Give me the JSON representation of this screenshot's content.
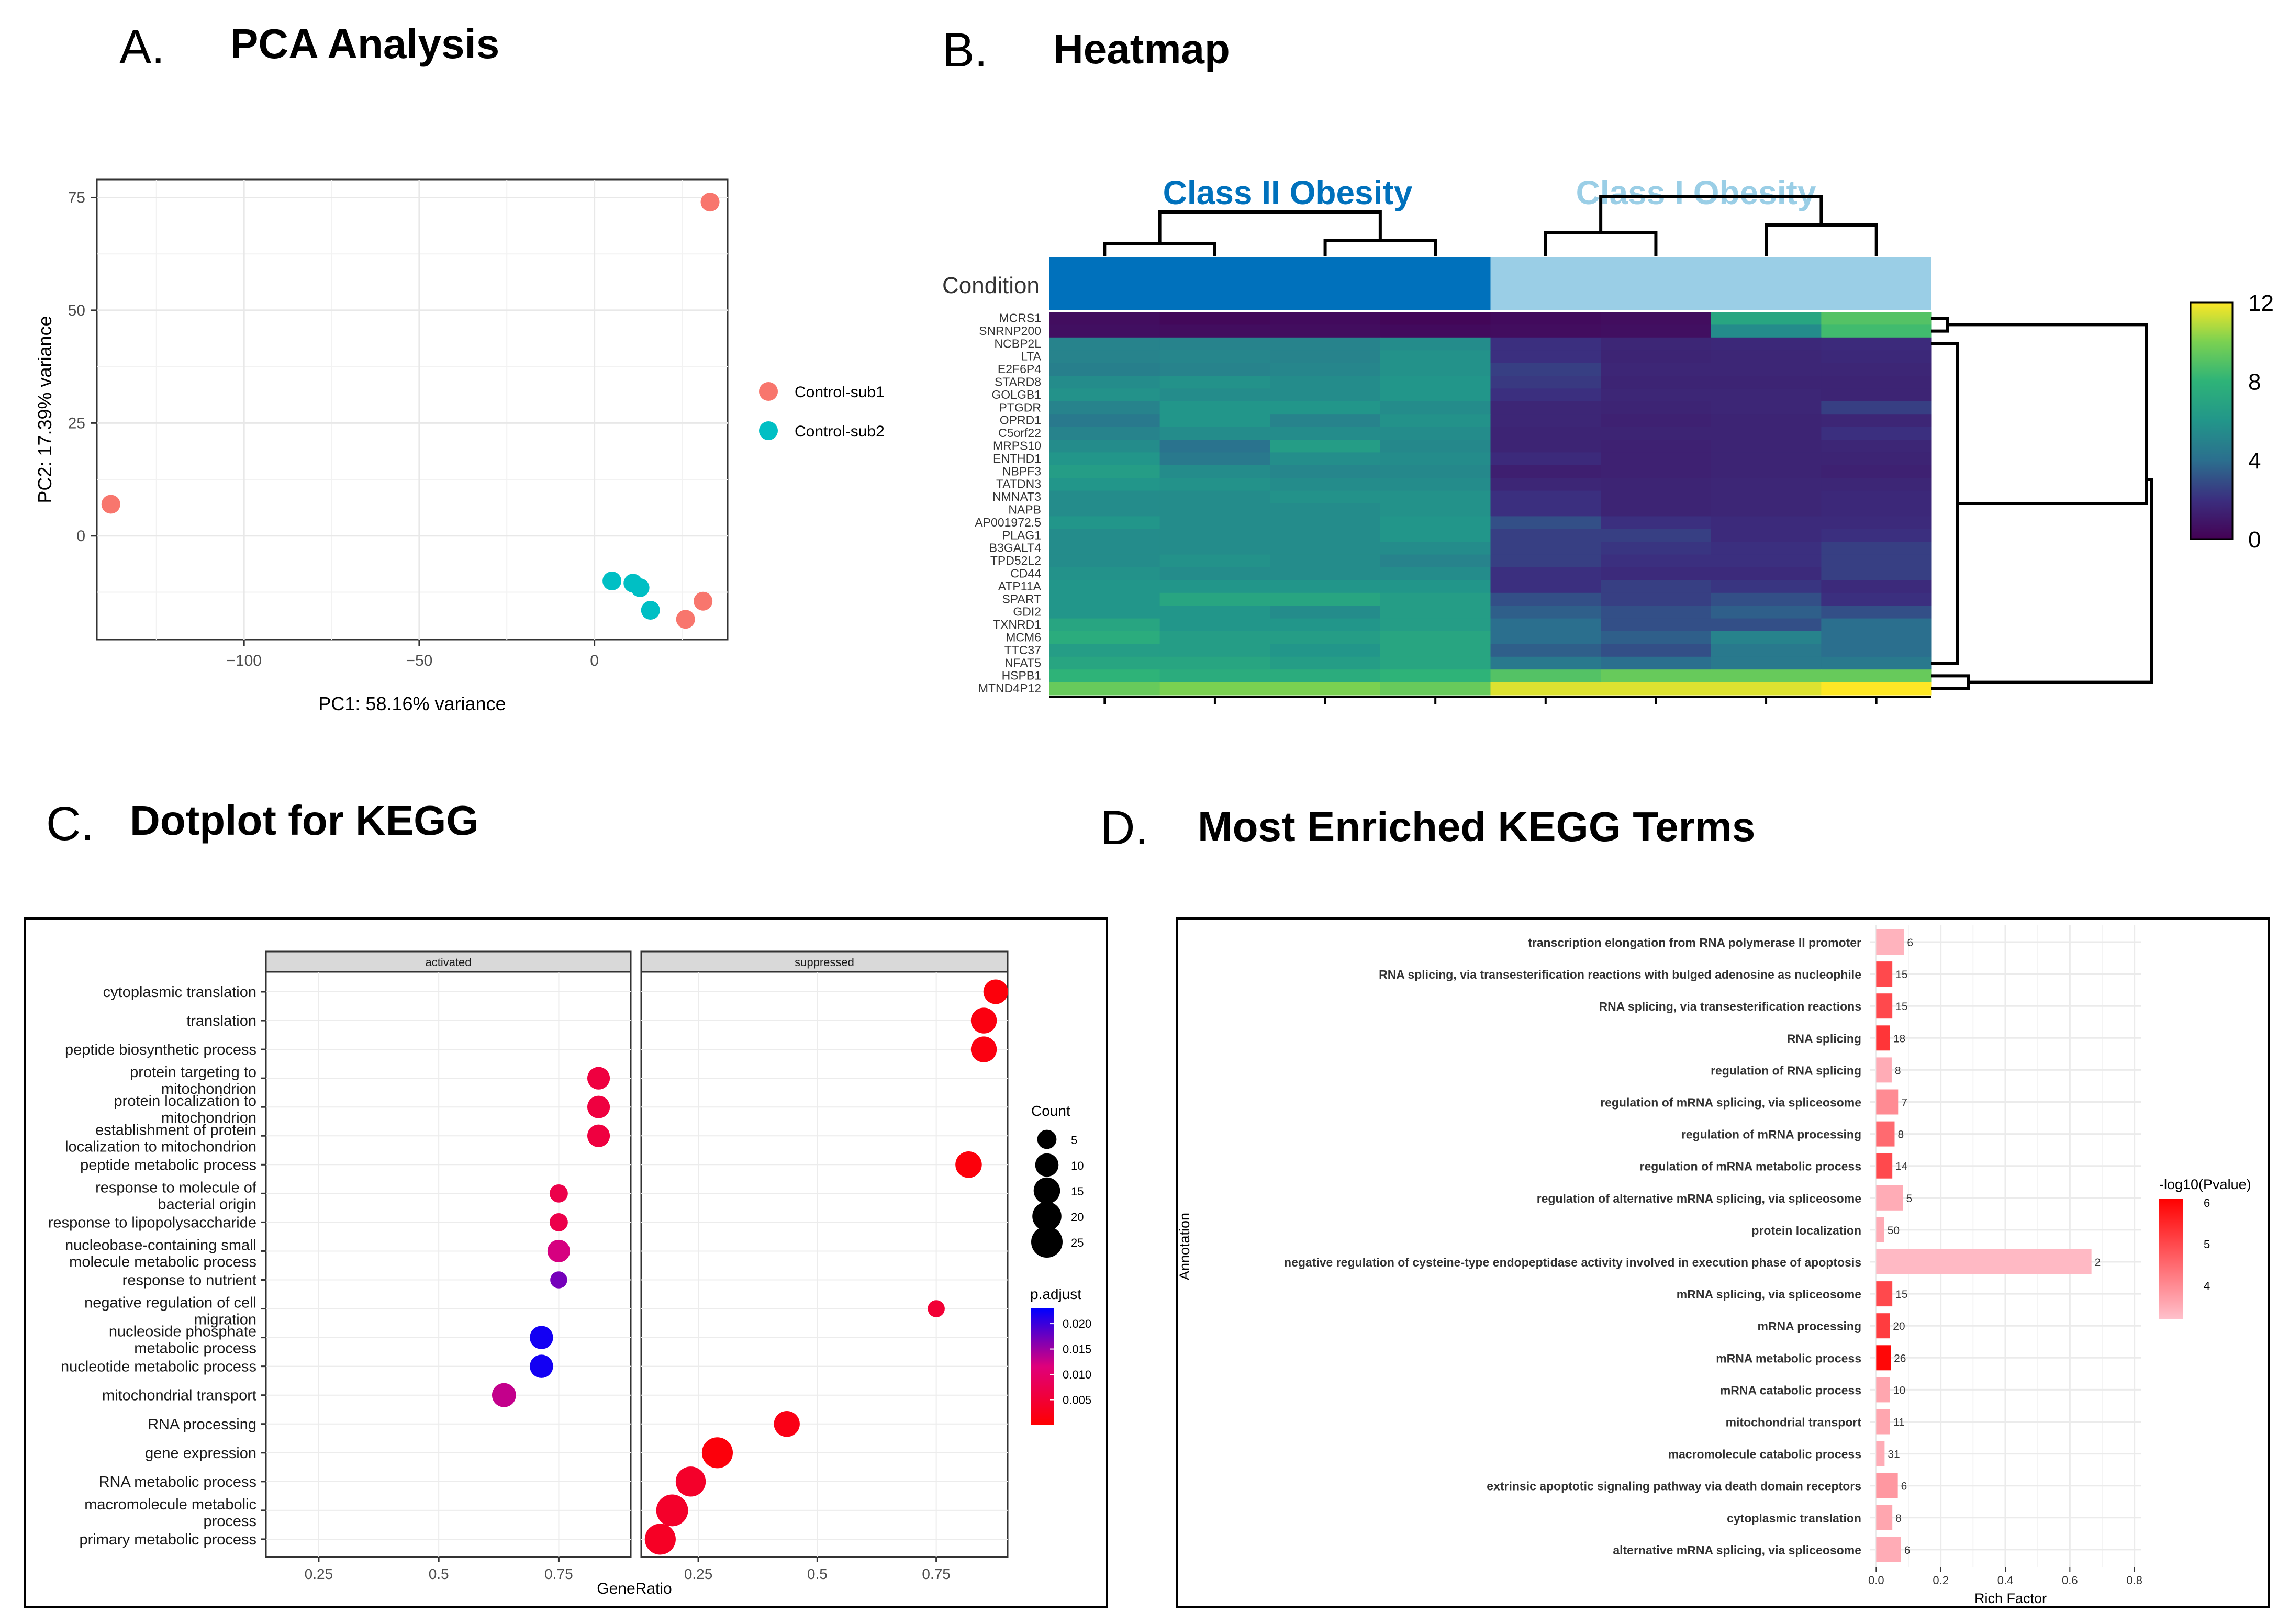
{
  "panels": {
    "a": {
      "letter": "A.",
      "title": "PCA Analysis"
    },
    "b": {
      "letter": "B.",
      "title": "Heatmap"
    },
    "c": {
      "letter": "C.",
      "title": "Dotplot for KEGG"
    },
    "d": {
      "letter": "D.",
      "title": "Most Enriched KEGG Terms"
    }
  },
  "chart_data": [
    {
      "id": "pca",
      "type": "scatter",
      "title": "PCA Analysis",
      "xlabel": "PC1: 58.16% variance",
      "ylabel": "PC2: 17.39% variance",
      "xlim": [
        -142,
        38
      ],
      "ylim": [
        -23,
        79
      ],
      "xticks": [
        -100,
        -50,
        0
      ],
      "yticks": [
        0,
        25,
        50,
        75
      ],
      "legend_position": "right",
      "series": [
        {
          "name": "Control-sub1",
          "color": "#F8766D",
          "points": [
            [
              33,
              74
            ],
            [
              -138,
              7
            ],
            [
              31,
              -14.5
            ],
            [
              26,
              -18.5
            ]
          ]
        },
        {
          "name": "Control-sub2",
          "color": "#00BFC4",
          "points": [
            [
              5,
              -10
            ],
            [
              11,
              -10.5
            ],
            [
              13,
              -11.5
            ],
            [
              16,
              -16.5
            ]
          ]
        }
      ]
    },
    {
      "id": "heatmap",
      "type": "heatmap",
      "title": "Heatmap",
      "row_annotation_label": "Condition",
      "groups": [
        {
          "name": "Class II Obesity",
          "color": "#0071BC",
          "columns": 4
        },
        {
          "name": "Class I Obesity",
          "color": "#9ACEE6",
          "columns": 4
        }
      ],
      "colorbar": {
        "min": 0,
        "max": 12,
        "ticks": [
          0,
          4,
          8,
          12
        ]
      },
      "genes": [
        "MCRS1",
        "SNRNP200",
        "NCBP2L",
        "LTA",
        "E2F6P4",
        "STARD8",
        "GOLGB1",
        "PTGDR",
        "OPRD1",
        "C5orf22",
        "MRPS10",
        "ENTHD1",
        "NBPF3",
        "TATDN3",
        "NMNAT3",
        "NAPB",
        "AP001972.5",
        "PLAG1",
        "B3GALT4",
        "TPD52L2",
        "CD44",
        "ATP11A",
        "SPART",
        "GDI2",
        "TXNRD1",
        "MCM6",
        "TTC37",
        "NFAT5",
        "HSPB1",
        "MTND4P12"
      ],
      "values": [
        [
          0.5,
          0.3,
          0.4,
          0.2,
          0.4,
          0.5,
          7.0,
          9.0
        ],
        [
          0.6,
          0.5,
          0.5,
          0.4,
          0.5,
          0.6,
          5.5,
          8.5
        ],
        [
          5.0,
          5.0,
          5.0,
          5.5,
          2.0,
          1.6,
          1.7,
          1.8
        ],
        [
          5.0,
          5.2,
          5.0,
          5.8,
          2.0,
          1.5,
          1.6,
          1.7
        ],
        [
          4.8,
          5.0,
          5.2,
          5.8,
          2.5,
          1.6,
          1.6,
          1.6
        ],
        [
          5.5,
          5.8,
          5.5,
          6.0,
          2.3,
          1.5,
          1.5,
          1.5
        ],
        [
          5.8,
          5.5,
          5.5,
          6.0,
          2.0,
          1.6,
          1.6,
          1.5
        ],
        [
          5.0,
          6.0,
          6.0,
          5.5,
          1.6,
          1.5,
          1.6,
          2.5
        ],
        [
          4.5,
          6.0,
          5.0,
          5.8,
          1.6,
          1.4,
          1.5,
          1.6
        ],
        [
          5.0,
          5.5,
          5.5,
          5.5,
          1.5,
          1.5,
          1.5,
          2.0
        ],
        [
          5.5,
          4.2,
          6.5,
          5.3,
          1.5,
          1.4,
          1.5,
          1.6
        ],
        [
          6.0,
          4.5,
          5.6,
          5.5,
          1.8,
          1.4,
          1.5,
          1.5
        ],
        [
          6.5,
          5.5,
          5.2,
          5.3,
          1.3,
          1.4,
          1.5,
          1.4
        ],
        [
          6.0,
          5.8,
          5.5,
          5.5,
          1.6,
          1.5,
          1.6,
          1.6
        ],
        [
          5.5,
          5.5,
          5.8,
          5.8,
          2.0,
          1.5,
          1.6,
          1.7
        ],
        [
          5.5,
          5.5,
          5.5,
          5.8,
          2.0,
          1.5,
          1.6,
          1.7
        ],
        [
          6.0,
          5.5,
          5.5,
          6.0,
          3.0,
          2.0,
          1.8,
          1.8
        ],
        [
          5.5,
          5.5,
          5.5,
          6.0,
          2.5,
          2.5,
          1.8,
          2.0
        ],
        [
          5.5,
          5.5,
          5.5,
          5.5,
          2.5,
          2.2,
          2.0,
          2.5
        ],
        [
          5.5,
          5.8,
          5.5,
          5.0,
          2.5,
          2.0,
          2.0,
          2.5
        ],
        [
          5.8,
          5.5,
          5.5,
          5.5,
          2.0,
          1.8,
          1.8,
          2.5
        ],
        [
          6.0,
          6.0,
          6.0,
          6.0,
          2.0,
          2.5,
          2.2,
          1.8
        ],
        [
          6.0,
          7.0,
          7.0,
          6.5,
          3.0,
          2.5,
          3.0,
          2.0
        ],
        [
          6.0,
          6.0,
          5.5,
          6.5,
          3.5,
          3.0,
          3.5,
          3.0
        ],
        [
          7.0,
          6.0,
          6.0,
          6.5,
          4.0,
          3.0,
          3.0,
          4.0
        ],
        [
          7.5,
          6.5,
          6.5,
          7.0,
          4.0,
          3.5,
          5.0,
          4.0
        ],
        [
          6.5,
          6.5,
          6.0,
          7.0,
          3.5,
          3.0,
          4.5,
          4.0
        ],
        [
          7.0,
          7.0,
          6.5,
          7.0,
          4.5,
          4.0,
          4.5,
          4.5
        ],
        [
          8.0,
          7.5,
          7.5,
          8.0,
          9.0,
          9.5,
          9.5,
          9.5
        ],
        [
          9.5,
          10.0,
          10.0,
          9.5,
          11.5,
          11.5,
          11.5,
          12.0
        ]
      ]
    },
    {
      "id": "dotplot",
      "type": "scatter",
      "title": "Dotplot for KEGG",
      "xlabel": "GeneRatio",
      "facets": [
        "activated",
        "suppressed"
      ],
      "facet_xlims": [
        [
          0.14,
          0.9
        ],
        [
          0.13,
          0.9
        ]
      ],
      "xticks": [
        0.25,
        0.5,
        0.75
      ],
      "categories": [
        [
          "cytoplasmic translation"
        ],
        [
          "translation"
        ],
        [
          "peptide biosynthetic process"
        ],
        [
          "protein targeting to",
          "mitochondrion"
        ],
        [
          "protein localization to",
          "mitochondrion"
        ],
        [
          "establishment of protein",
          "localization to mitochondrion"
        ],
        [
          "peptide metabolic process"
        ],
        [
          "response to molecule of",
          "bacterial origin"
        ],
        [
          "response to lipopolysaccharide"
        ],
        [
          "nucleobase-containing small",
          "molecule metabolic process"
        ],
        [
          "response to nutrient"
        ],
        [
          "negative regulation of cell",
          "migration"
        ],
        [
          "nucleoside phosphate",
          "metabolic process"
        ],
        [
          "nucleotide metabolic process"
        ],
        [
          "mitochondrial transport"
        ],
        [
          "RNA processing"
        ],
        [
          "gene expression"
        ],
        [
          "RNA metabolic process"
        ],
        [
          "macromolecule metabolic",
          "process"
        ],
        [
          "primary metabolic process"
        ]
      ],
      "points": [
        {
          "facet": 1,
          "row": 0,
          "x": 0.875,
          "count": 12,
          "padj": 0.001
        },
        {
          "facet": 1,
          "row": 1,
          "x": 0.85,
          "count": 14,
          "padj": 0.0015
        },
        {
          "facet": 1,
          "row": 2,
          "x": 0.85,
          "count": 14,
          "padj": 0.0015
        },
        {
          "facet": 0,
          "row": 3,
          "x": 0.833,
          "count": 9,
          "padj": 0.006
        },
        {
          "facet": 0,
          "row": 4,
          "x": 0.833,
          "count": 9,
          "padj": 0.006
        },
        {
          "facet": 0,
          "row": 5,
          "x": 0.833,
          "count": 9,
          "padj": 0.006
        },
        {
          "facet": 1,
          "row": 6,
          "x": 0.818,
          "count": 15,
          "padj": 0.001
        },
        {
          "facet": 0,
          "row": 7,
          "x": 0.75,
          "count": 4,
          "padj": 0.007
        },
        {
          "facet": 0,
          "row": 8,
          "x": 0.75,
          "count": 4,
          "padj": 0.007
        },
        {
          "facet": 0,
          "row": 9,
          "x": 0.75,
          "count": 9,
          "padj": 0.012
        },
        {
          "facet": 0,
          "row": 10,
          "x": 0.75,
          "count": 3,
          "padj": 0.017
        },
        {
          "facet": 1,
          "row": 11,
          "x": 0.75,
          "count": 3,
          "padj": 0.005
        },
        {
          "facet": 0,
          "row": 12,
          "x": 0.714,
          "count": 10,
          "padj": 0.022
        },
        {
          "facet": 0,
          "row": 13,
          "x": 0.714,
          "count": 10,
          "padj": 0.022
        },
        {
          "facet": 0,
          "row": 14,
          "x": 0.636,
          "count": 11,
          "padj": 0.013
        },
        {
          "facet": 1,
          "row": 15,
          "x": 0.436,
          "count": 14,
          "padj": 0.002
        },
        {
          "facet": 1,
          "row": 16,
          "x": 0.29,
          "count": 24,
          "padj": 0.001
        },
        {
          "facet": 1,
          "row": 17,
          "x": 0.234,
          "count": 22,
          "padj": 0.004
        },
        {
          "facet": 1,
          "row": 18,
          "x": 0.195,
          "count": 26,
          "padj": 0.004
        },
        {
          "facet": 1,
          "row": 19,
          "x": 0.17,
          "count": 24,
          "padj": 0.0035
        }
      ],
      "count_legend": {
        "title": "Count",
        "values": [
          5,
          10,
          15,
          20,
          25
        ]
      },
      "padj_legend": {
        "title": "p.adjust",
        "ticks": [
          0.005,
          0.01,
          0.015,
          0.02
        ],
        "tick_labels": [
          "0.005",
          "0.010",
          "0.015",
          "0.020"
        ],
        "low_color": "#FF0000",
        "high_color": "#0000FF",
        "range": [
          0.0,
          0.023
        ]
      }
    },
    {
      "id": "kegg_bar",
      "type": "bar",
      "orientation": "horizontal",
      "title": "Most Enriched KEGG Terms",
      "xlabel": "Rich Factor",
      "ylabel": "Annotation",
      "xlim": [
        -0.02,
        0.82
      ],
      "xticks": [
        0.0,
        0.2,
        0.4,
        0.6,
        0.8
      ],
      "xtick_labels": [
        "0.0",
        "0.2",
        "0.4",
        "0.6",
        "0.8"
      ],
      "categories": [
        "transcription elongation from RNA polymerase II promoter",
        "RNA splicing, via transesterification reactions with bulged adenosine as nucleophile",
        "RNA splicing, via transesterification reactions",
        "RNA splicing",
        "regulation of RNA splicing",
        "regulation of mRNA splicing, via spliceosome",
        "regulation of mRNA processing",
        "regulation of mRNA metabolic process",
        "regulation of alternative mRNA splicing, via spliceosome",
        "protein localization",
        "negative regulation of cysteine-type endopeptidase activity involved in execution phase of apoptosis",
        "mRNA splicing, via spliceosome",
        "mRNA processing",
        "mRNA metabolic process",
        "mRNA catabolic process",
        "mitochondrial transport",
        "macromolecule catabolic process",
        "extrinsic apoptotic signaling pathway via death domain receptors",
        "cytoplasmic translation",
        "alternative mRNA splicing, via spliceosome"
      ],
      "values": [
        0.086,
        0.05,
        0.05,
        0.043,
        0.048,
        0.068,
        0.057,
        0.05,
        0.083,
        0.025,
        0.667,
        0.05,
        0.042,
        0.045,
        0.043,
        0.043,
        0.026,
        0.067,
        0.05,
        0.077
      ],
      "counts": [
        "6",
        "15",
        "15",
        "18",
        "8",
        "7",
        "8",
        "14",
        "5",
        "50",
        "2",
        "15",
        "20",
        "26",
        "10",
        "11",
        "31",
        "6",
        "8",
        "6"
      ],
      "neg_log10_p": [
        3.4,
        5.0,
        5.0,
        5.3,
        3.5,
        4.0,
        4.5,
        5.0,
        3.5,
        3.5,
        3.3,
        5.0,
        5.2,
        6.0,
        3.6,
        3.6,
        3.5,
        3.8,
        3.6,
        3.5
      ],
      "legend": {
        "title": "-log10(Pvalue)",
        "ticks": [
          4,
          5,
          6
        ],
        "range": [
          3.2,
          6.1
        ],
        "low_color": "#FFC0CB",
        "high_color": "#FF0000"
      }
    }
  ]
}
